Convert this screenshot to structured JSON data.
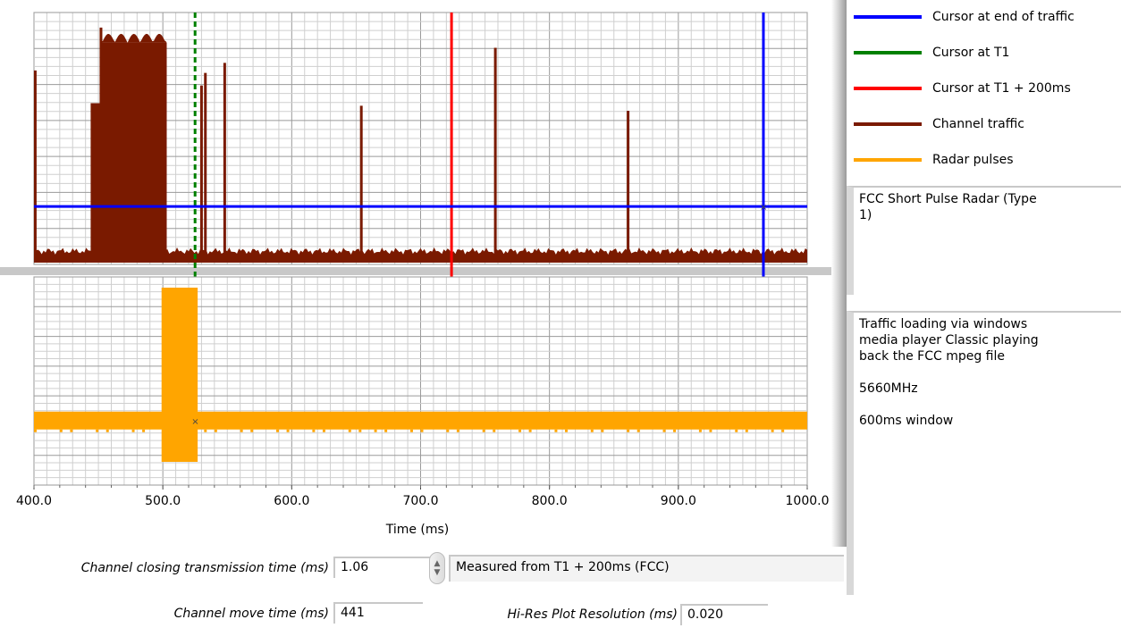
{
  "legend": [
    {
      "label": "Cursor at end of traffic",
      "color": "#0000ff"
    },
    {
      "label": "Cursor at T1",
      "color": "#008000"
    },
    {
      "label": "Cursor at T1 + 200ms",
      "color": "#ff0000"
    },
    {
      "label": "Channel traffic",
      "color": "#7a1a00"
    },
    {
      "label": "Radar pulses",
      "color": "#ffa500"
    }
  ],
  "radar_type_text": "FCC Short Pulse Radar (Type\n1)",
  "notes_text": "Traffic loading via windows\nmedia player Classic playing\nback the FCC mpeg file\n\n5660MHz\n\n600ms window",
  "controls": {
    "closing_label": "Channel closing transmission time (ms)",
    "closing_value": "1.06",
    "measured_from": "Measured from T1 + 200ms (FCC)",
    "move_label": "Channel move time (ms)",
    "move_value": "441",
    "hires_label": "Hi-Res Plot Resolution (ms)",
    "hires_value": "0.020"
  },
  "chart_data": {
    "type": "line",
    "xlabel": "Time (ms)",
    "xlim": [
      400,
      1000
    ],
    "x_ticks": [
      "400.0",
      "500.0",
      "600.0",
      "700.0",
      "800.0",
      "900.0",
      "1000.0"
    ],
    "grid": true,
    "cursors": [
      {
        "name": "Cursor at end of traffic",
        "x": 966,
        "color": "#0000ff",
        "style": "solid"
      },
      {
        "name": "Cursor at T1",
        "x": 525,
        "color": "#008000",
        "style": "dashed"
      },
      {
        "name": "Cursor at T1 + 200ms",
        "x": 724,
        "color": "#ff0000",
        "style": "solid"
      }
    ],
    "series": [
      {
        "name": "Channel traffic",
        "color": "#7a1a00",
        "spikes_x": [
          401,
          446,
          452,
          530,
          533,
          548,
          654,
          758,
          861
        ],
        "spike_levels": [
          0.77,
          0.61,
          0.94,
          0.71,
          0.76,
          0.8,
          0.63,
          0.86,
          0.61
        ],
        "burst": [
          [
            444,
            503
          ],
          [
            451,
            503
          ]
        ]
      },
      {
        "name": "Radar pulses",
        "color": "#ffa500",
        "pulse_burst": [
          499,
          527
        ]
      }
    ]
  }
}
